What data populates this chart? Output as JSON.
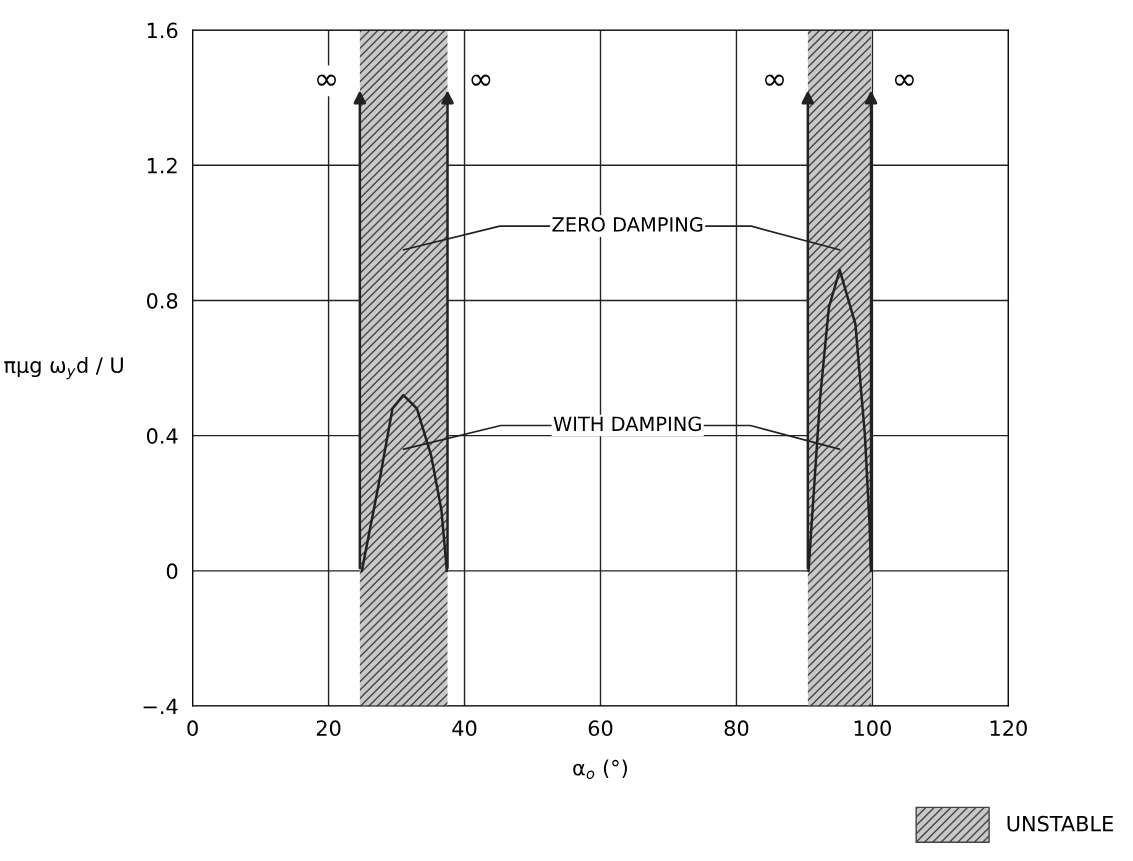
{
  "chart_data": {
    "type": "line",
    "xlabel": "α$_{o}$ (°)",
    "ylabel": "πμg ω$_{y}$d / U",
    "xlim": [
      0,
      120
    ],
    "xticks": [
      0,
      20,
      40,
      60,
      80,
      100,
      120
    ],
    "ylim": [
      -0.4,
      1.6
    ],
    "yticks": [
      {
        "value": -0.4,
        "label": "−.4"
      },
      0,
      0.4,
      0.8,
      1.2,
      1.6
    ],
    "grid": true,
    "legend": "bottom right",
    "marker": "none",
    "line_style": "solid",
    "series": [
      {
        "color": "#222222",
        "x": [
          24.9,
          27.7,
          29.4,
          31,
          33,
          35.1,
          36.6,
          37.4
        ],
        "values": [
          0,
          0.29,
          0.48,
          0.52,
          0.48,
          0.34,
          0.18,
          0
        ]
      },
      {
        "color": "#222222",
        "x": [
          90.6,
          92.3,
          93.6,
          95.2,
          97.5,
          98.9,
          99.6,
          99.8
        ],
        "values": [
          0,
          0.51,
          0.78,
          0.89,
          0.73,
          0.4,
          0.13,
          0
        ]
      }
    ],
    "bands": [
      {
        "axis": "x",
        "from": 24.6,
        "to": 37.5,
        "label": "UNSTABLE",
        "color": "#c8c8c8"
      },
      {
        "axis": "x",
        "from": 90.5,
        "to": 99.8,
        "color": "#c8c8c8"
      }
    ],
    "annotations": [
      "∞",
      "∞",
      "∞",
      "∞",
      "ZERO DAMPING",
      "WITH DAMPING"
    ]
  }
}
